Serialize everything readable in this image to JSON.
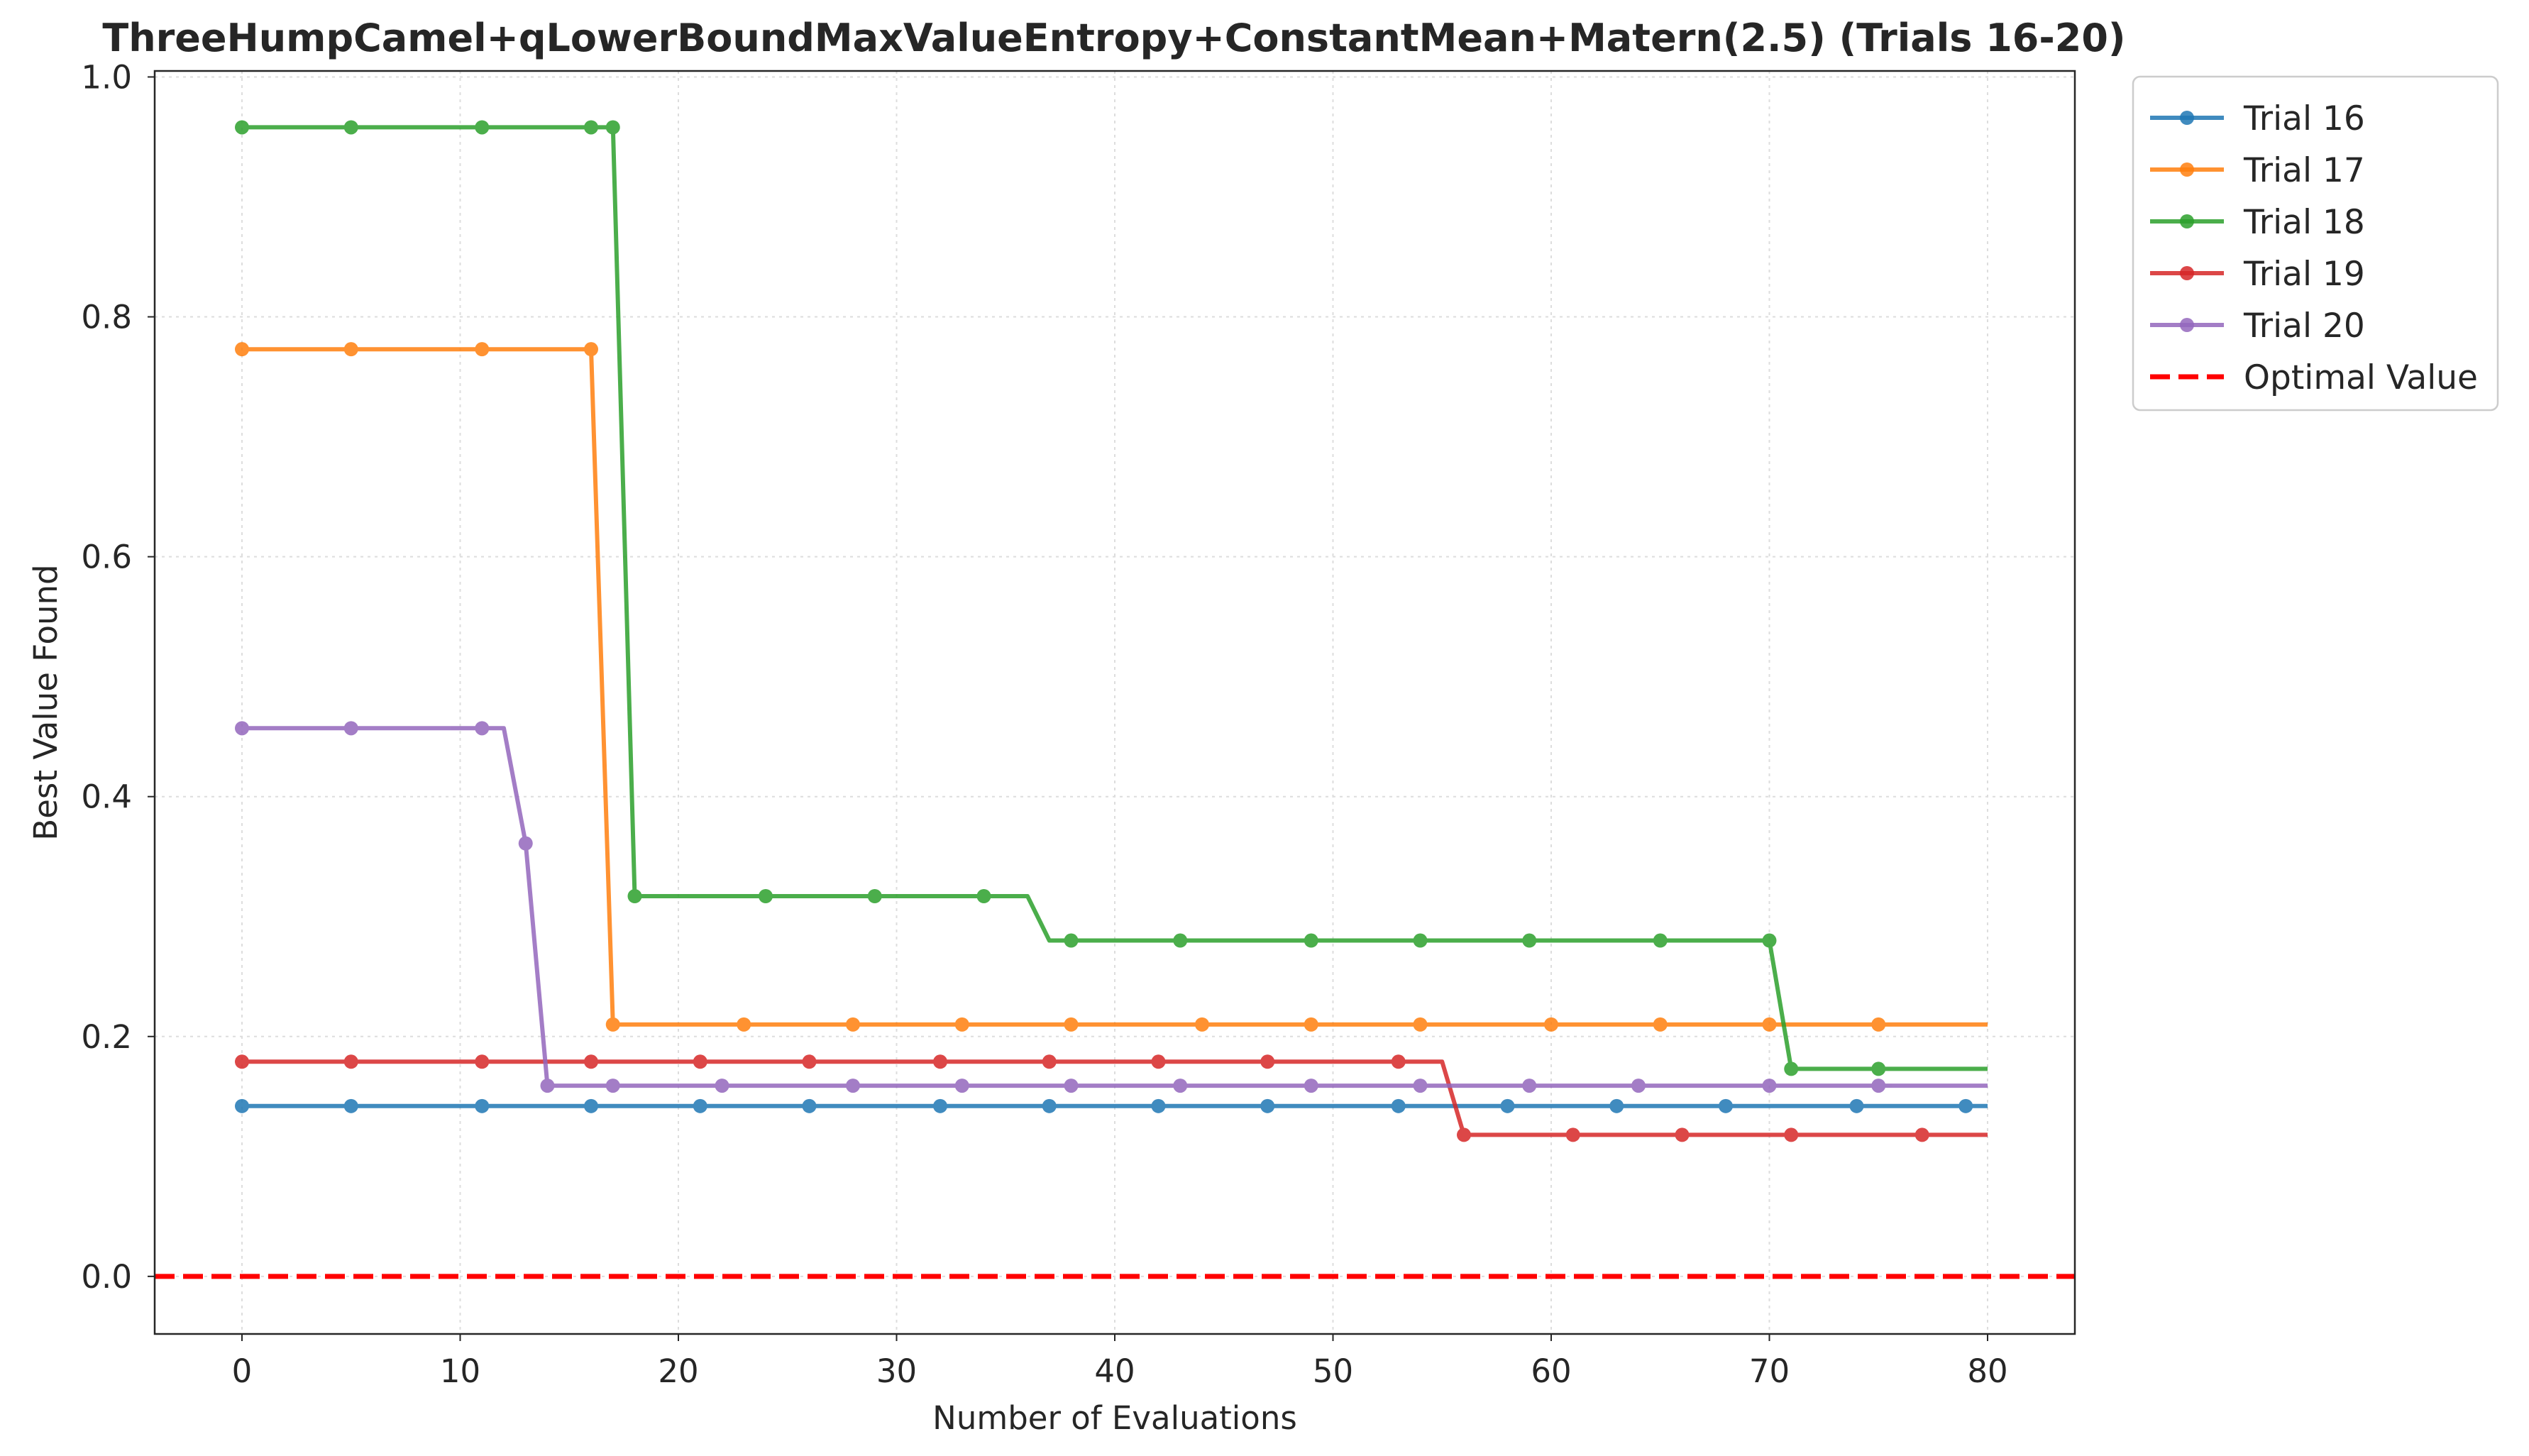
{
  "chart_data": {
    "type": "line",
    "title": "ThreeHumpCamel+qLowerBoundMaxValueEntropy+ConstantMean+Matern(2.5) (Trials 16-20)",
    "xlabel": "Number of Evaluations",
    "ylabel": "Best Value Found",
    "xlim": [
      -4,
      84
    ],
    "ylim": [
      -0.048,
      1.005
    ],
    "xticks": [
      0,
      10,
      20,
      30,
      40,
      50,
      60,
      70,
      80
    ],
    "yticks": [
      0.0,
      0.2,
      0.4,
      0.6,
      0.8,
      1.0
    ],
    "xtick_labels": [
      "0",
      "10",
      "20",
      "30",
      "40",
      "50",
      "60",
      "70",
      "80"
    ],
    "ytick_labels": [
      "0.0",
      "0.2",
      "0.4",
      "0.6",
      "0.8",
      "1.0"
    ],
    "grid": true,
    "legend_position": "outside-top-right",
    "series": [
      {
        "name": "Trial 16",
        "color": "#1f77b4",
        "line": [
          [
            0,
            0.142
          ],
          [
            80,
            0.142
          ]
        ],
        "markers": [
          [
            0,
            0.142
          ],
          [
            5,
            0.142
          ],
          [
            11,
            0.142
          ],
          [
            16,
            0.142
          ],
          [
            21,
            0.142
          ],
          [
            26,
            0.142
          ],
          [
            32,
            0.142
          ],
          [
            37,
            0.142
          ],
          [
            42,
            0.142
          ],
          [
            47,
            0.142
          ],
          [
            53,
            0.142
          ],
          [
            58,
            0.142
          ],
          [
            63,
            0.142
          ],
          [
            68,
            0.142
          ],
          [
            74,
            0.142
          ],
          [
            79,
            0.142
          ]
        ]
      },
      {
        "name": "Trial 17",
        "color": "#ff7f0e",
        "line": [
          [
            0,
            0.773
          ],
          [
            16,
            0.773
          ],
          [
            17,
            0.21
          ],
          [
            80,
            0.21
          ]
        ],
        "markers": [
          [
            0,
            0.773
          ],
          [
            5,
            0.773
          ],
          [
            11,
            0.773
          ],
          [
            16,
            0.773
          ],
          [
            17,
            0.21
          ],
          [
            23,
            0.21
          ],
          [
            28,
            0.21
          ],
          [
            33,
            0.21
          ],
          [
            38,
            0.21
          ],
          [
            44,
            0.21
          ],
          [
            49,
            0.21
          ],
          [
            54,
            0.21
          ],
          [
            60,
            0.21
          ],
          [
            65,
            0.21
          ],
          [
            70,
            0.21
          ],
          [
            75,
            0.21
          ]
        ]
      },
      {
        "name": "Trial 18",
        "color": "#2ca02c",
        "line": [
          [
            0,
            0.958
          ],
          [
            17,
            0.958
          ],
          [
            18,
            0.317
          ],
          [
            36,
            0.317
          ],
          [
            37,
            0.28
          ],
          [
            70,
            0.28
          ],
          [
            71,
            0.173
          ],
          [
            80,
            0.173
          ]
        ],
        "markers": [
          [
            0,
            0.958
          ],
          [
            5,
            0.958
          ],
          [
            11,
            0.958
          ],
          [
            16,
            0.958
          ],
          [
            17,
            0.958
          ],
          [
            18,
            0.317
          ],
          [
            24,
            0.317
          ],
          [
            29,
            0.317
          ],
          [
            34,
            0.317
          ],
          [
            38,
            0.28
          ],
          [
            43,
            0.28
          ],
          [
            49,
            0.28
          ],
          [
            54,
            0.28
          ],
          [
            59,
            0.28
          ],
          [
            65,
            0.28
          ],
          [
            70,
            0.28
          ],
          [
            71,
            0.173
          ],
          [
            75,
            0.173
          ]
        ]
      },
      {
        "name": "Trial 19",
        "color": "#d62728",
        "line": [
          [
            0,
            0.179
          ],
          [
            55,
            0.179
          ],
          [
            56,
            0.118
          ],
          [
            80,
            0.118
          ]
        ],
        "markers": [
          [
            0,
            0.179
          ],
          [
            5,
            0.179
          ],
          [
            11,
            0.179
          ],
          [
            16,
            0.179
          ],
          [
            21,
            0.179
          ],
          [
            26,
            0.179
          ],
          [
            32,
            0.179
          ],
          [
            37,
            0.179
          ],
          [
            42,
            0.179
          ],
          [
            47,
            0.179
          ],
          [
            53,
            0.179
          ],
          [
            56,
            0.118
          ],
          [
            61,
            0.118
          ],
          [
            66,
            0.118
          ],
          [
            71,
            0.118
          ],
          [
            77,
            0.118
          ]
        ]
      },
      {
        "name": "Trial 20",
        "color": "#9467bd",
        "line": [
          [
            0,
            0.457
          ],
          [
            12,
            0.457
          ],
          [
            13,
            0.361
          ],
          [
            14,
            0.159
          ],
          [
            80,
            0.159
          ]
        ],
        "markers": [
          [
            0,
            0.457
          ],
          [
            5,
            0.457
          ],
          [
            11,
            0.457
          ],
          [
            13,
            0.361
          ],
          [
            14,
            0.159
          ],
          [
            17,
            0.159
          ],
          [
            22,
            0.159
          ],
          [
            28,
            0.159
          ],
          [
            33,
            0.159
          ],
          [
            38,
            0.159
          ],
          [
            43,
            0.159
          ],
          [
            49,
            0.159
          ],
          [
            54,
            0.159
          ],
          [
            59,
            0.159
          ],
          [
            64,
            0.159
          ],
          [
            70,
            0.159
          ],
          [
            75,
            0.159
          ]
        ]
      }
    ],
    "reference_line": {
      "name": "Optimal Value",
      "value": 0.0,
      "color": "#ff0000",
      "style": "dashed"
    }
  }
}
